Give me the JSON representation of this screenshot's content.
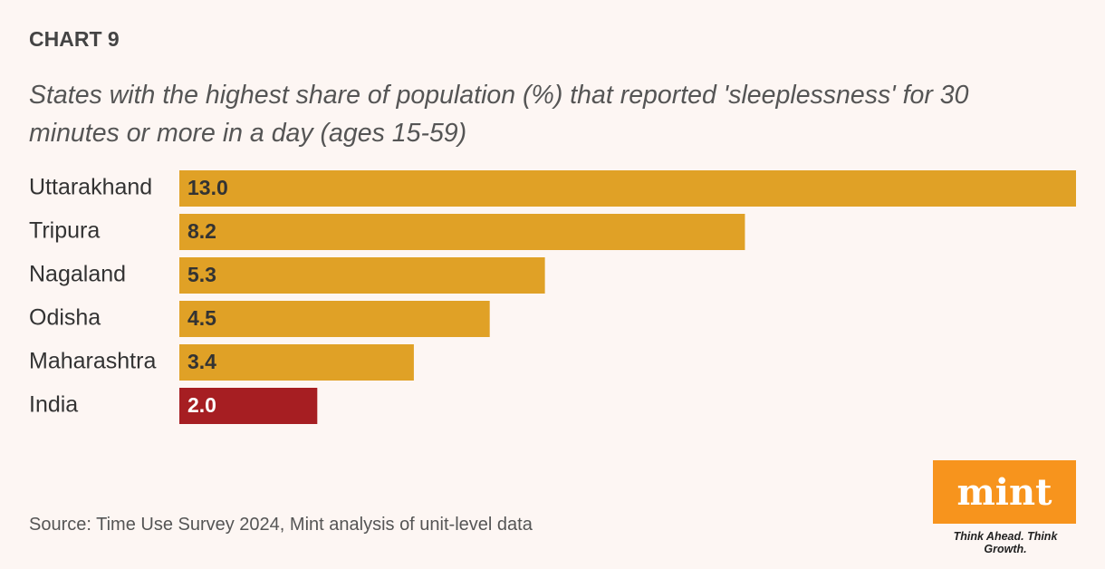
{
  "chart_data": {
    "type": "bar",
    "orientation": "horizontal",
    "kicker": "CHART 9",
    "title": "States with the highest share of population (%) that reported 'sleeplessness' for 30 minutes or more in a day (ages 15-59)",
    "categories": [
      "Uttarakhand",
      "Tripura",
      "Nagaland",
      "Odisha",
      "Maharashtra",
      "India"
    ],
    "values": [
      13,
      8.2,
      5.3,
      4.5,
      3.4,
      2
    ],
    "value_labels": [
      "13.0",
      "8.2",
      "5.3",
      "4.5",
      "3.4",
      "2.0"
    ],
    "colors": [
      "#e0a126",
      "#e0a126",
      "#e0a126",
      "#e0a126",
      "#e0a126",
      "#a61e22"
    ],
    "source": "Source: Time Use Survey 2024, Mint analysis of unit-level data",
    "logo": {
      "text": "mint",
      "tagline": "Think Ahead. Think Growth."
    }
  }
}
